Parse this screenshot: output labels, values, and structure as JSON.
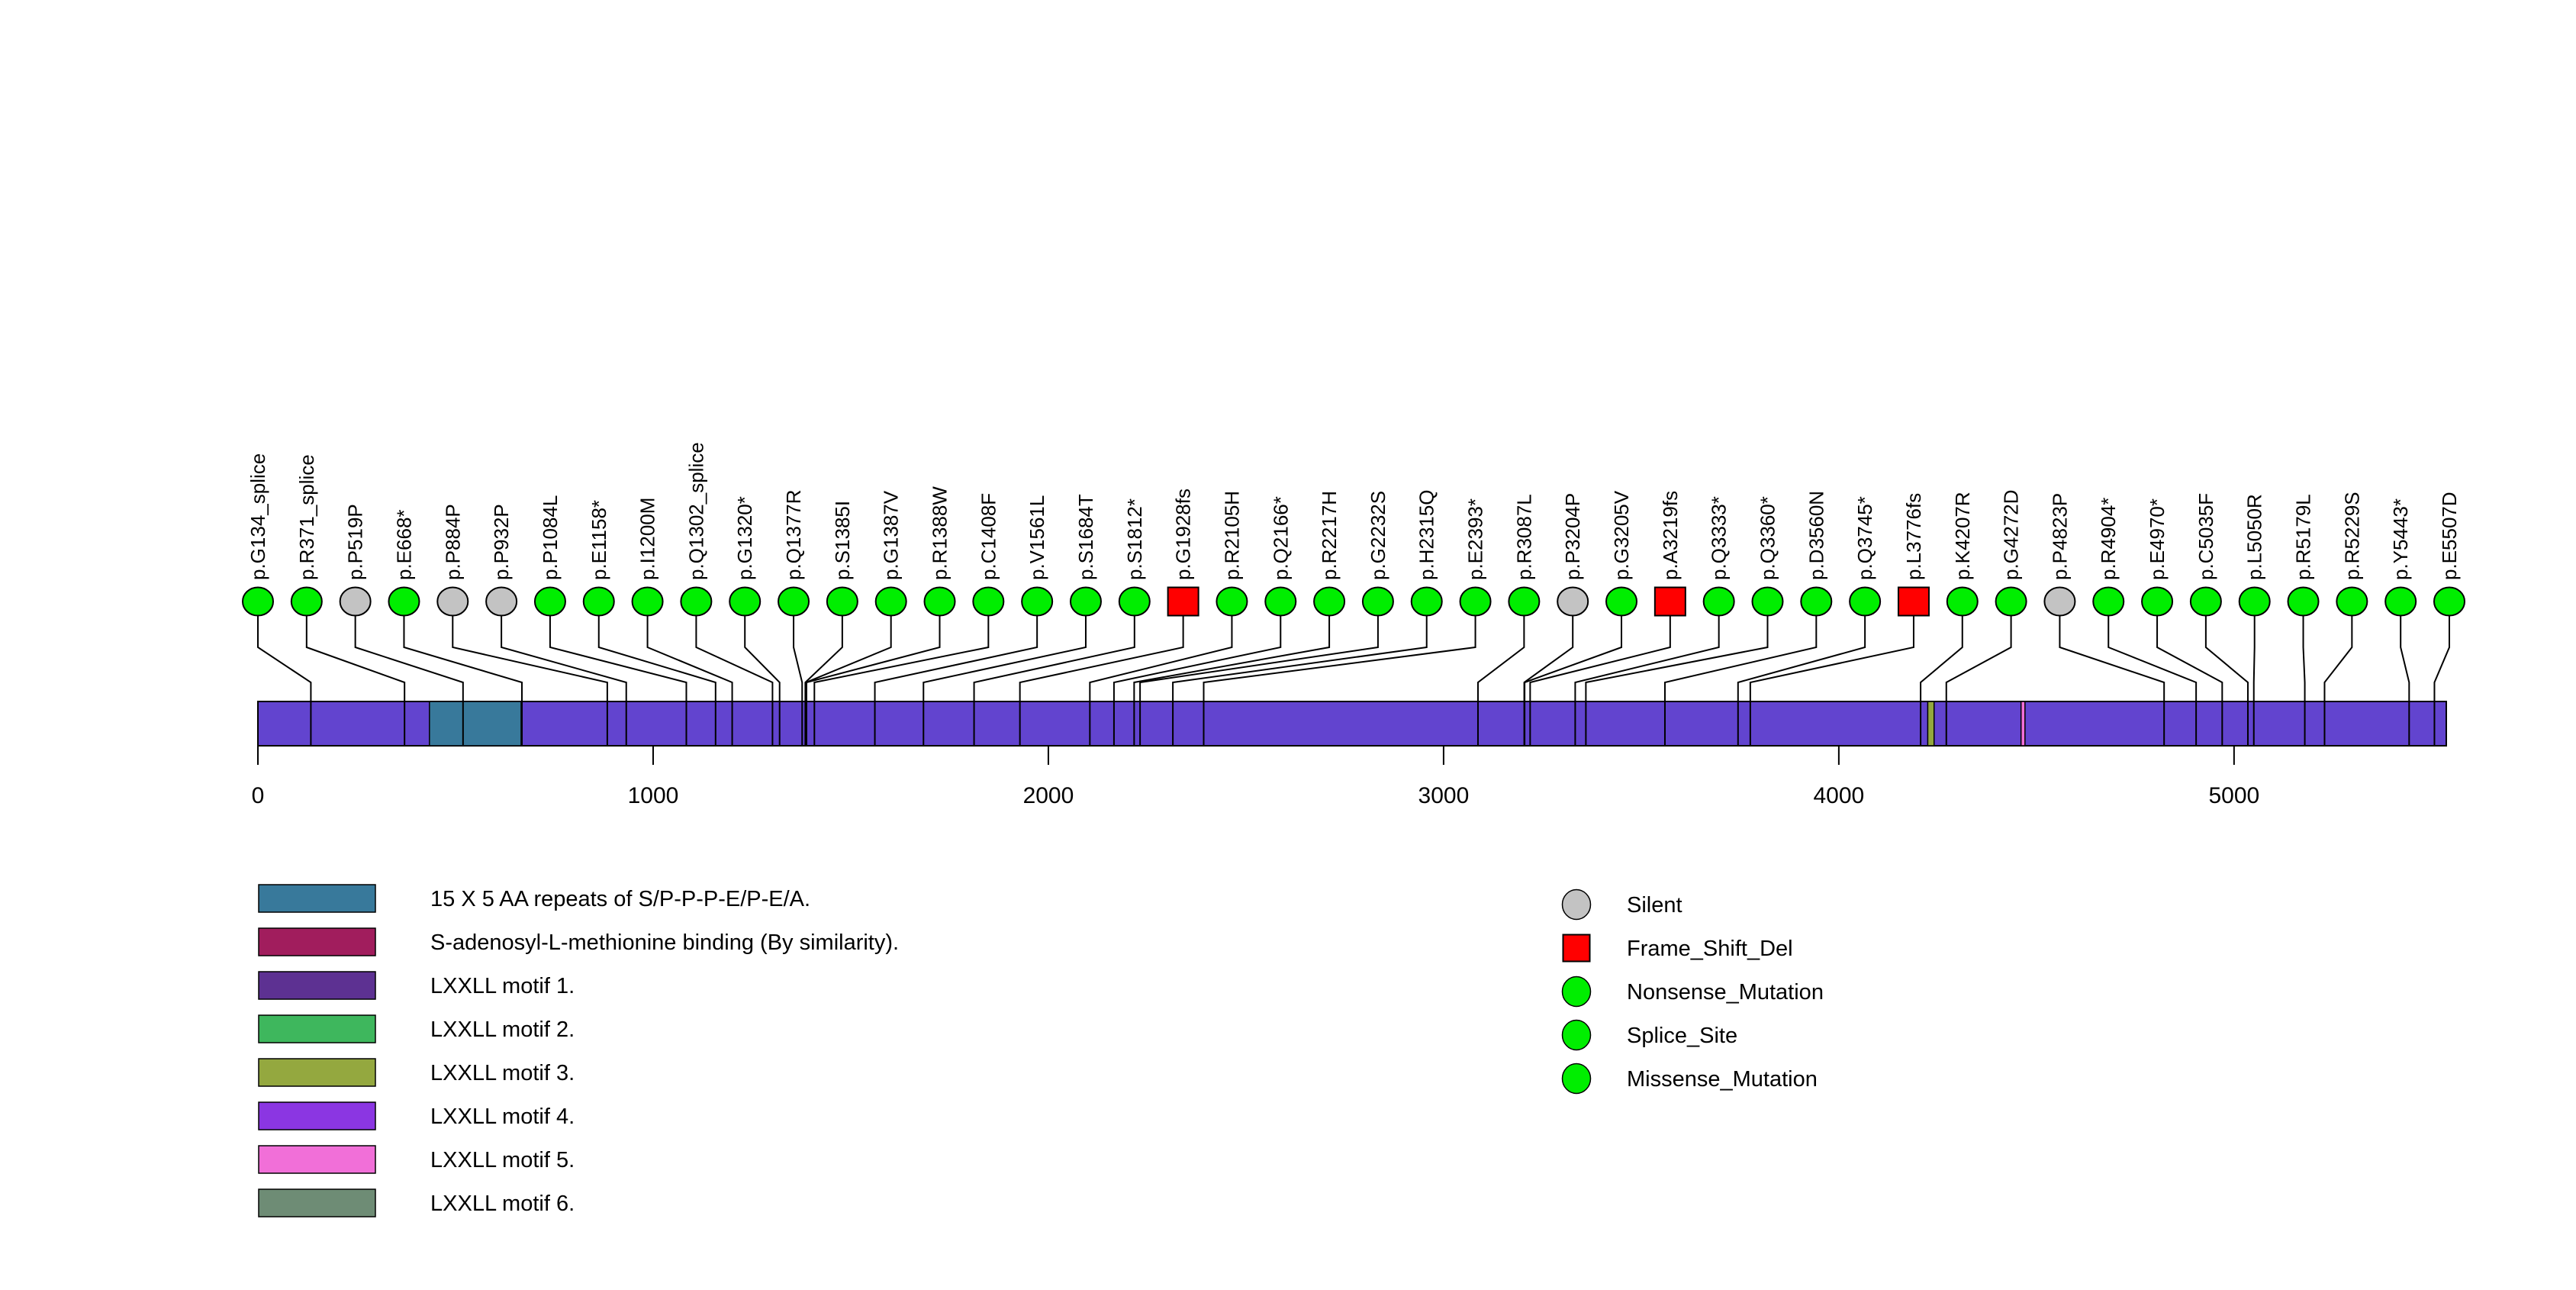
{
  "chart_data": {
    "type": "lollipop",
    "title": "",
    "protein": {
      "length": 5537,
      "backbone_color": "#6244CF"
    },
    "xaxis": {
      "ticks": [
        0,
        1000,
        2000,
        3000,
        4000,
        5000
      ],
      "xlim": [
        0,
        5537
      ]
    },
    "marker_colors": {
      "Silent": "#C3C3C3",
      "Frame_Shift_Del": "#FF0000",
      "Nonsense_Mutation": "#00EE00",
      "Splice_Site": "#00EE00",
      "Missense_Mutation": "#00EE00"
    },
    "mutations": [
      {
        "label": "p.G134_splice",
        "pos": 134,
        "type": "Splice_Site"
      },
      {
        "label": "p.R371_splice",
        "pos": 371,
        "type": "Splice_Site"
      },
      {
        "label": "p.P519P",
        "pos": 519,
        "type": "Silent"
      },
      {
        "label": "p.E668*",
        "pos": 668,
        "type": "Nonsense_Mutation"
      },
      {
        "label": "p.P884P",
        "pos": 884,
        "type": "Silent"
      },
      {
        "label": "p.P932P",
        "pos": 932,
        "type": "Silent"
      },
      {
        "label": "p.P1084L",
        "pos": 1084,
        "type": "Missense_Mutation"
      },
      {
        "label": "p.E1158*",
        "pos": 1158,
        "type": "Nonsense_Mutation"
      },
      {
        "label": "p.I1200M",
        "pos": 1200,
        "type": "Missense_Mutation"
      },
      {
        "label": "p.Q1302_splice",
        "pos": 1302,
        "type": "Splice_Site"
      },
      {
        "label": "p.G1320*",
        "pos": 1320,
        "type": "Nonsense_Mutation"
      },
      {
        "label": "p.Q1377R",
        "pos": 1377,
        "type": "Missense_Mutation"
      },
      {
        "label": "p.S1385I",
        "pos": 1385,
        "type": "Missense_Mutation"
      },
      {
        "label": "p.G1387V",
        "pos": 1387,
        "type": "Missense_Mutation"
      },
      {
        "label": "p.R1388W",
        "pos": 1388,
        "type": "Missense_Mutation"
      },
      {
        "label": "p.C1408F",
        "pos": 1408,
        "type": "Missense_Mutation"
      },
      {
        "label": "p.V1561L",
        "pos": 1561,
        "type": "Missense_Mutation"
      },
      {
        "label": "p.S1684T",
        "pos": 1684,
        "type": "Missense_Mutation"
      },
      {
        "label": "p.S1812*",
        "pos": 1812,
        "type": "Nonsense_Mutation"
      },
      {
        "label": "p.G1928fs",
        "pos": 1928,
        "type": "Frame_Shift_Del"
      },
      {
        "label": "p.R2105H",
        "pos": 2105,
        "type": "Missense_Mutation"
      },
      {
        "label": "p.Q2166*",
        "pos": 2166,
        "type": "Nonsense_Mutation"
      },
      {
        "label": "p.R2217H",
        "pos": 2217,
        "type": "Missense_Mutation"
      },
      {
        "label": "p.G2232S",
        "pos": 2232,
        "type": "Missense_Mutation"
      },
      {
        "label": "p.H2315Q",
        "pos": 2315,
        "type": "Missense_Mutation"
      },
      {
        "label": "p.E2393*",
        "pos": 2393,
        "type": "Nonsense_Mutation"
      },
      {
        "label": "p.R3087L",
        "pos": 3087,
        "type": "Missense_Mutation"
      },
      {
        "label": "p.P3204P",
        "pos": 3204,
        "type": "Silent"
      },
      {
        "label": "p.G3205V",
        "pos": 3205,
        "type": "Missense_Mutation"
      },
      {
        "label": "p.A3219fs",
        "pos": 3219,
        "type": "Frame_Shift_Del"
      },
      {
        "label": "p.Q3333*",
        "pos": 3333,
        "type": "Nonsense_Mutation"
      },
      {
        "label": "p.Q3360*",
        "pos": 3360,
        "type": "Nonsense_Mutation"
      },
      {
        "label": "p.D3560N",
        "pos": 3560,
        "type": "Missense_Mutation"
      },
      {
        "label": "p.Q3745*",
        "pos": 3745,
        "type": "Nonsense_Mutation"
      },
      {
        "label": "p.L3776fs",
        "pos": 3776,
        "type": "Frame_Shift_Del"
      },
      {
        "label": "p.K4207R",
        "pos": 4207,
        "type": "Missense_Mutation"
      },
      {
        "label": "p.G4272D",
        "pos": 4272,
        "type": "Missense_Mutation"
      },
      {
        "label": "p.P4823P",
        "pos": 4823,
        "type": "Silent"
      },
      {
        "label": "p.R4904*",
        "pos": 4904,
        "type": "Nonsense_Mutation"
      },
      {
        "label": "p.E4970*",
        "pos": 4970,
        "type": "Nonsense_Mutation"
      },
      {
        "label": "p.C5035F",
        "pos": 5035,
        "type": "Missense_Mutation"
      },
      {
        "label": "p.L5050R",
        "pos": 5050,
        "type": "Missense_Mutation"
      },
      {
        "label": "p.R5179L",
        "pos": 5179,
        "type": "Missense_Mutation"
      },
      {
        "label": "p.R5229S",
        "pos": 5229,
        "type": "Missense_Mutation"
      },
      {
        "label": "p.Y5443*",
        "pos": 5443,
        "type": "Nonsense_Mutation"
      },
      {
        "label": "p.E5507D",
        "pos": 5507,
        "type": "Missense_Mutation"
      }
    ],
    "domains": [
      {
        "label": "15 X 5 AA repeats of S/P-P-P-E/P-E/A.",
        "start": 434,
        "end": 666,
        "color": "#38799B"
      },
      {
        "label": "LXXLL motif 3.",
        "start": 4225,
        "end": 4241,
        "color": "#94A83F"
      },
      {
        "label": "LXXLL motif 5.",
        "start": 4461,
        "end": 4471,
        "color": "#F16FD8"
      }
    ],
    "legend_domains": [
      {
        "label": "15 X 5 AA repeats of S/P-P-P-E/P-E/A.",
        "color": "#38799B"
      },
      {
        "label": "S-adenosyl-L-methionine binding (By similarity).",
        "color": "#A11D5D"
      },
      {
        "label": "LXXLL motif 1.",
        "color": "#5D3192"
      },
      {
        "label": "LXXLL motif 2.",
        "color": "#3EB75D"
      },
      {
        "label": "LXXLL motif 3.",
        "color": "#94A83F"
      },
      {
        "label": "LXXLL motif 4.",
        "color": "#8B36E2"
      },
      {
        "label": "LXXLL motif 5.",
        "color": "#F16FD8"
      },
      {
        "label": "LXXLL motif 6.",
        "color": "#6E8C75"
      }
    ],
    "legend_mutations": [
      {
        "label": "Silent",
        "color": "#C3C3C3",
        "shape": "ellipse"
      },
      {
        "label": "Frame_Shift_Del",
        "color": "#FF0000",
        "shape": "square"
      },
      {
        "label": "Nonsense_Mutation",
        "color": "#00EE00",
        "shape": "ellipse"
      },
      {
        "label": "Splice_Site",
        "color": "#00EE00",
        "shape": "ellipse"
      },
      {
        "label": "Missense_Mutation",
        "color": "#00EE00",
        "shape": "ellipse"
      }
    ]
  }
}
